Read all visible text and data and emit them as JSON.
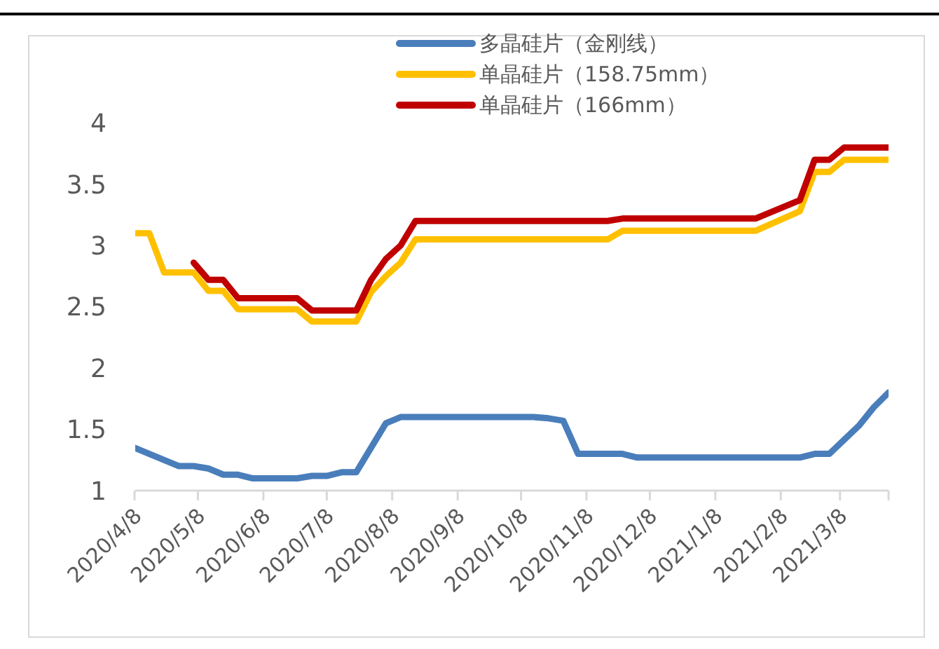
{
  "chart_data": {
    "type": "line",
    "xlim": [
      "2020-04-08",
      "2021-03-31"
    ],
    "xticks": [
      {
        "value": "2020-04-08",
        "label": "2020/4/8"
      },
      {
        "value": "2020-05-08",
        "label": "2020/5/8"
      },
      {
        "value": "2020-06-08",
        "label": "2020/6/8"
      },
      {
        "value": "2020-07-08",
        "label": "2020/7/8"
      },
      {
        "value": "2020-08-08",
        "label": "2020/8/8"
      },
      {
        "value": "2020-09-08",
        "label": "2020/9/8"
      },
      {
        "value": "2020-10-08",
        "label": "2020/10/8"
      },
      {
        "value": "2020-11-08",
        "label": "2020/11/8"
      },
      {
        "value": "2020-12-08",
        "label": "2020/12/8"
      },
      {
        "value": "2021-01-08",
        "label": "2021/1/8"
      },
      {
        "value": "2021-02-08",
        "label": "2021/2/8"
      },
      {
        "value": "2021-03-08",
        "label": "2021/3/8"
      },
      {
        "value": "2021-03-31",
        "label": null
      }
    ],
    "ylim": [
      1,
      4.5
    ],
    "yticks": [
      1,
      1.5,
      2,
      2.5,
      3,
      3.5,
      4
    ],
    "grid": false,
    "legend": "top",
    "marker": "none",
    "line_style": "solid",
    "series": [
      {
        "name": "多晶硅片（金刚线）",
        "color": "#4a7ebb",
        "x": [
          "2020-04-08",
          "2020-04-29",
          "2020-05-06",
          "2020-05-13",
          "2020-05-20",
          "2020-05-27",
          "2020-06-03",
          "2020-06-24",
          "2020-07-01",
          "2020-07-08",
          "2020-07-15",
          "2020-07-22",
          "2020-08-05",
          "2020-08-12",
          "2020-10-14",
          "2020-10-21",
          "2020-10-28",
          "2020-11-04",
          "2020-11-25",
          "2020-12-02",
          "2021-02-17",
          "2021-02-24",
          "2021-03-03",
          "2021-03-17",
          "2021-03-24",
          "2021-03-31"
        ],
        "values": [
          1.35,
          1.2,
          1.2,
          1.18,
          1.13,
          1.13,
          1.1,
          1.1,
          1.12,
          1.12,
          1.15,
          1.15,
          1.55,
          1.6,
          1.6,
          1.59,
          1.57,
          1.3,
          1.3,
          1.27,
          1.27,
          1.3,
          1.3,
          1.53,
          1.68,
          1.8
        ]
      },
      {
        "name": "单晶硅片（158.75mm）",
        "color": "#ffc000",
        "x": [
          "2020-04-08",
          "2020-04-15",
          "2020-04-22",
          "2020-05-06",
          "2020-05-13",
          "2020-05-20",
          "2020-05-27",
          "2020-06-24",
          "2020-07-01",
          "2020-07-22",
          "2020-07-29",
          "2020-08-05",
          "2020-08-12",
          "2020-08-19",
          "2020-11-18",
          "2020-11-25",
          "2021-01-27",
          "2021-02-17",
          "2021-02-24",
          "2021-03-03",
          "2021-03-10",
          "2021-03-31"
        ],
        "values": [
          3.1,
          3.1,
          2.78,
          2.78,
          2.63,
          2.63,
          2.48,
          2.48,
          2.38,
          2.38,
          2.62,
          2.75,
          2.86,
          3.05,
          3.05,
          3.12,
          3.12,
          3.28,
          3.6,
          3.6,
          3.7,
          3.7
        ]
      },
      {
        "name": "单晶硅片（166mm）",
        "color": "#c00000",
        "x": [
          "2020-05-06",
          "2020-05-13",
          "2020-05-20",
          "2020-05-27",
          "2020-06-24",
          "2020-07-01",
          "2020-07-22",
          "2020-07-29",
          "2020-08-05",
          "2020-08-12",
          "2020-08-19",
          "2020-11-18",
          "2020-11-25",
          "2021-01-27",
          "2021-02-17",
          "2021-02-24",
          "2021-03-03",
          "2021-03-10",
          "2021-03-31"
        ],
        "values": [
          2.86,
          2.72,
          2.72,
          2.57,
          2.57,
          2.47,
          2.47,
          2.72,
          2.89,
          3.0,
          3.2,
          3.2,
          3.22,
          3.22,
          3.37,
          3.7,
          3.7,
          3.8,
          3.8
        ]
      }
    ]
  }
}
